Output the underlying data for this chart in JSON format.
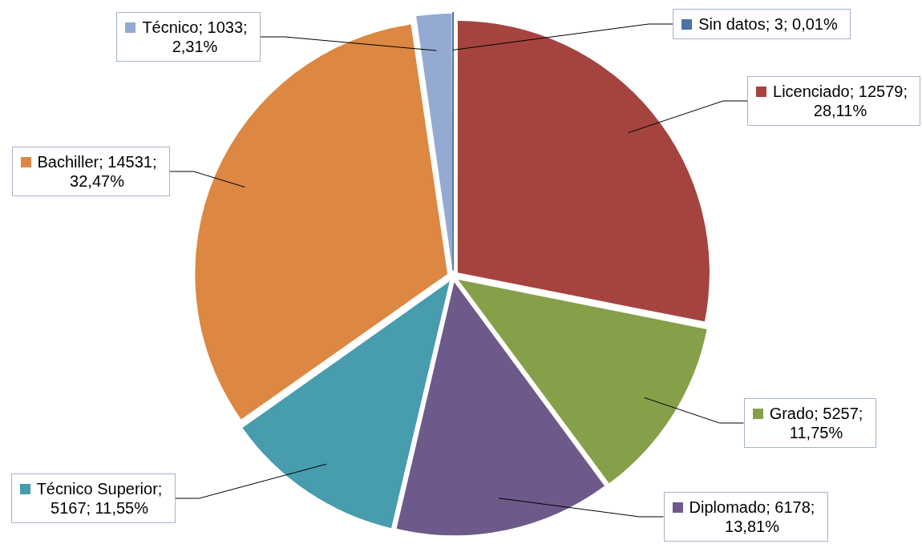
{
  "chart_data": {
    "type": "pie",
    "categories": [
      "Sin datos; 3; 0,01%",
      "Licenciado; 12579; 28,11%",
      "Grado; 5257; 11,75%",
      "Diplomado; 6178; 13,81%",
      "Técnico Superior; 5167; 11,55%",
      "Bachiller; 14531; 32,47%",
      "Técnico; 1033; 2,31%"
    ],
    "values": [
      3,
      12579,
      5257,
      6178,
      5167,
      14531,
      1033
    ],
    "legend": "right",
    "colors": [
      "#4a72a8",
      "#a5443f",
      "#86a04a",
      "#6d5a8a",
      "#479cae",
      "#dc8742",
      "#94aad2"
    ]
  }
}
